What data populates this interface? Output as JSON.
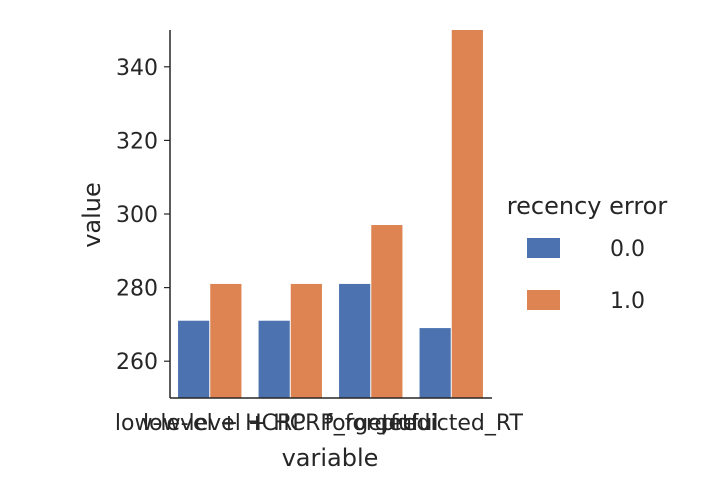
{
  "chart_data": {
    "type": "bar",
    "xlabel": "variable",
    "ylabel": "value",
    "categories": [
      "low-level + HCRP",
      "low-level + HCRP_forgetful",
      "forgetful",
      "predicted_RT"
    ],
    "ylim": [
      250,
      350
    ],
    "yticks": [
      260,
      280,
      300,
      320,
      340
    ],
    "grid": false,
    "legend_title": "recency error",
    "legend_position": "right",
    "series": [
      {
        "name": "0.0",
        "color": "#4c72b0",
        "values": [
          271,
          271,
          281,
          269
        ]
      },
      {
        "name": "1.0",
        "color": "#dd8452",
        "values": [
          281,
          281,
          297,
          350
        ]
      }
    ]
  }
}
